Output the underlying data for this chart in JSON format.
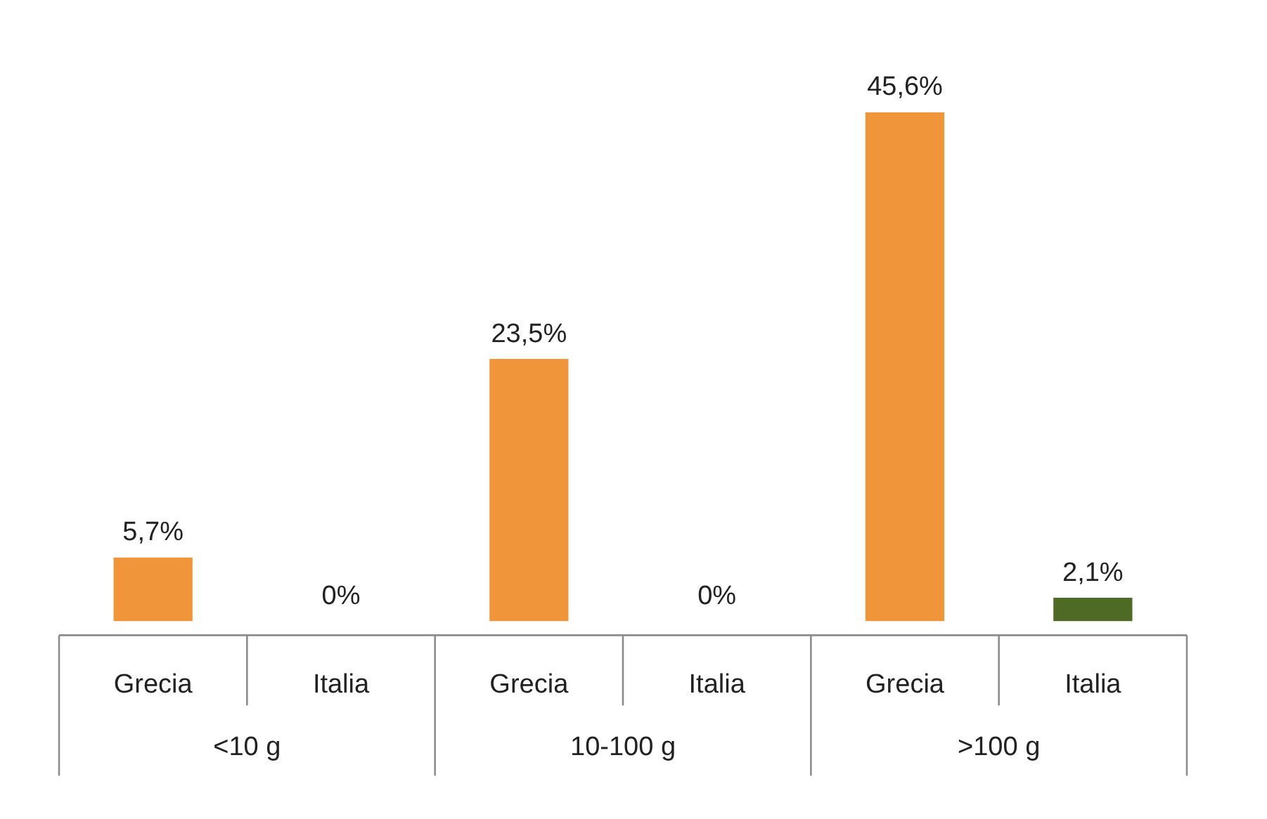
{
  "chart_data": {
    "type": "bar",
    "categories": [
      "Grecia",
      "Italia",
      "Grecia",
      "Italia",
      "Grecia",
      "Italia"
    ],
    "values": [
      5.7,
      0,
      23.5,
      0,
      45.6,
      2.1
    ],
    "colors": [
      "#f0953a",
      "#4e6a24",
      "#f0953a",
      "#4e6a24",
      "#f0953a",
      "#4e6a24"
    ],
    "value_labels": [
      "5,7%",
      "0%",
      "23,5%",
      "0%",
      "45,6%",
      "2,1%"
    ],
    "annotations": [
      "<10 g",
      "10-100 g",
      ">100 g"
    ],
    "grid": false,
    "legend": false
  }
}
